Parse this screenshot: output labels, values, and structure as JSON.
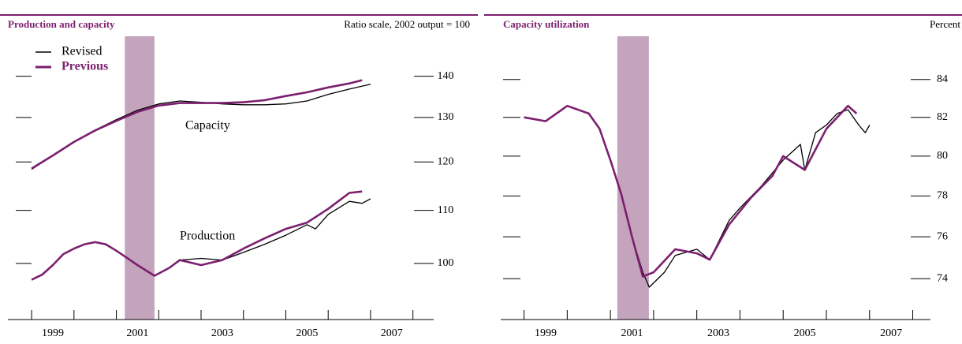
{
  "chart_data": [
    {
      "type": "line",
      "title": "Production and capacity",
      "subtitle": "Ratio scale, 2002 output = 100",
      "yscale": "log",
      "ylim": [
        90.4,
        151.7
      ],
      "yticks": [
        100,
        110,
        120,
        130,
        140
      ],
      "xlim": [
        1998.44,
        2008.49
      ],
      "xticks": [
        {
          "value": 1999.5,
          "label": "1999"
        },
        {
          "value": 2001.5,
          "label": "2001"
        },
        {
          "value": 2003.5,
          "label": "2003"
        },
        {
          "value": 2005.5,
          "label": "2005"
        },
        {
          "value": 2007.5,
          "label": "2007"
        }
      ],
      "xtick_marks": [
        1999,
        2000,
        2001,
        2002,
        2003,
        2004,
        2005,
        2006,
        2007,
        2008
      ],
      "shading": [
        2001.2,
        2001.9
      ],
      "shading_color": "#c4a3bd",
      "legend": "upper left",
      "annotations": [
        "Capacity",
        "Production"
      ],
      "series": [
        {
          "name": "Revised",
          "color": "#000000",
          "lines": [
            {
              "x": [
                1999.0,
                1999.5,
                2000.0,
                2000.5,
                2001.0,
                2001.5,
                2002.0,
                2002.5,
                2003.0,
                2003.5,
                2004.0,
                2004.5,
                2005.0,
                2005.5,
                2006.0,
                2006.5,
                2007.0
              ],
              "values": [
                118.4,
                121.4,
                124.4,
                127.1,
                129.5,
                131.7,
                133.2,
                133.9,
                133.6,
                133.2,
                133.0,
                133.0,
                133.2,
                133.9,
                135.5,
                136.8,
                138.0
              ]
            },
            {
              "x": [
                1999.0,
                1999.25,
                1999.5,
                1999.75,
                2000.0,
                2000.25,
                2000.5,
                2000.75,
                2001.0,
                2001.25,
                2001.5,
                2001.75,
                2001.9,
                2002.25,
                2002.5,
                2003.0,
                2003.5,
                2004.0,
                2004.5,
                2005.0,
                2005.5,
                2005.7,
                2006.0,
                2006.5,
                2006.8,
                2007.0
              ],
              "values": [
                97.1,
                98.0,
                99.7,
                101.7,
                102.7,
                103.5,
                103.9,
                103.5,
                102.3,
                101.0,
                99.7,
                98.5,
                97.8,
                99.2,
                100.6,
                100.9,
                100.6,
                102.0,
                103.5,
                105.2,
                107.2,
                106.4,
                109.2,
                111.8,
                111.4,
                112.3
              ]
            }
          ]
        },
        {
          "name": "Previous",
          "color": "#7b1f6e",
          "lines": [
            {
              "x": [
                1999.0,
                1999.5,
                2000.0,
                2000.5,
                2001.0,
                2001.5,
                2002.0,
                2002.5,
                2003.0,
                2003.5,
                2004.0,
                2004.5,
                2005.0,
                2005.5,
                2006.0,
                2006.5,
                2006.8
              ],
              "values": [
                118.6,
                121.4,
                124.4,
                127.0,
                129.2,
                131.3,
                132.8,
                133.4,
                133.4,
                133.4,
                133.6,
                134.1,
                135.1,
                136.0,
                137.2,
                138.2,
                139.0
              ]
            },
            {
              "x": [
                1999.0,
                1999.25,
                1999.5,
                1999.75,
                2000.0,
                2000.25,
                2000.5,
                2000.75,
                2001.0,
                2001.25,
                2001.5,
                2001.75,
                2001.9,
                2002.25,
                2002.5,
                2003.0,
                2003.5,
                2004.0,
                2004.5,
                2005.0,
                2005.5,
                2006.0,
                2006.5,
                2006.8
              ],
              "values": [
                97.1,
                98.0,
                99.7,
                101.7,
                102.7,
                103.5,
                103.9,
                103.5,
                102.3,
                101.0,
                99.7,
                98.5,
                97.8,
                99.2,
                100.6,
                99.7,
                100.6,
                102.7,
                104.6,
                106.4,
                107.6,
                110.3,
                113.5,
                113.8
              ]
            }
          ]
        }
      ]
    },
    {
      "type": "line",
      "title": "Capacity utilization",
      "subtitle": "Percent",
      "yscale": "log",
      "ylim": [
        72.1,
        86.6
      ],
      "yticks": [
        74,
        76,
        78,
        80,
        82,
        84
      ],
      "xlim": [
        1998.46,
        2008.41
      ],
      "xticks": [
        {
          "value": 1999.5,
          "label": "1999"
        },
        {
          "value": 2001.5,
          "label": "2001"
        },
        {
          "value": 2003.5,
          "label": "2003"
        },
        {
          "value": 2005.5,
          "label": "2005"
        },
        {
          "value": 2007.5,
          "label": "2007"
        }
      ],
      "xtick_marks": [
        1999,
        2000,
        2001,
        2002,
        2003,
        2004,
        2005,
        2006,
        2007,
        2008
      ],
      "shading": [
        2001.16,
        2001.89
      ],
      "shading_color": "#c4a3bd",
      "series": [
        {
          "name": "Revised",
          "color": "#000000",
          "lines": [
            {
              "x": [
                1999.0,
                1999.5,
                2000.0,
                2000.5,
                2000.75,
                2001.0,
                2001.25,
                2001.5,
                2001.75,
                2001.9,
                2002.25,
                2002.5,
                2003.0,
                2003.3,
                2003.75,
                2004.0,
                2004.5,
                2005.0,
                2005.4,
                2005.5,
                2005.75,
                2006.0,
                2006.25,
                2006.5,
                2006.75,
                2006.9,
                2007.0
              ],
              "values": [
                82.0,
                81.8,
                82.6,
                82.2,
                81.4,
                79.8,
                78.1,
                76.0,
                74.3,
                73.6,
                74.3,
                75.1,
                75.4,
                74.9,
                76.8,
                77.4,
                78.5,
                79.8,
                80.6,
                79.3,
                81.2,
                81.6,
                82.2,
                82.4,
                81.6,
                81.2,
                81.6
              ]
            }
          ]
        },
        {
          "name": "Previous",
          "color": "#7b1f6e",
          "lines": [
            {
              "x": [
                1999.0,
                1999.5,
                2000.0,
                2000.5,
                2000.75,
                2001.0,
                2001.25,
                2001.5,
                2001.75,
                2002.0,
                2002.5,
                2003.0,
                2003.3,
                2003.75,
                2004.25,
                2004.75,
                2005.0,
                2005.5,
                2006.0,
                2006.5,
                2006.7
              ],
              "values": [
                82.0,
                81.8,
                82.6,
                82.2,
                81.4,
                79.8,
                78.1,
                76.0,
                74.1,
                74.3,
                75.4,
                75.2,
                74.9,
                76.6,
                77.9,
                79.0,
                80.0,
                79.3,
                81.4,
                82.6,
                82.2
              ]
            }
          ]
        }
      ]
    }
  ]
}
